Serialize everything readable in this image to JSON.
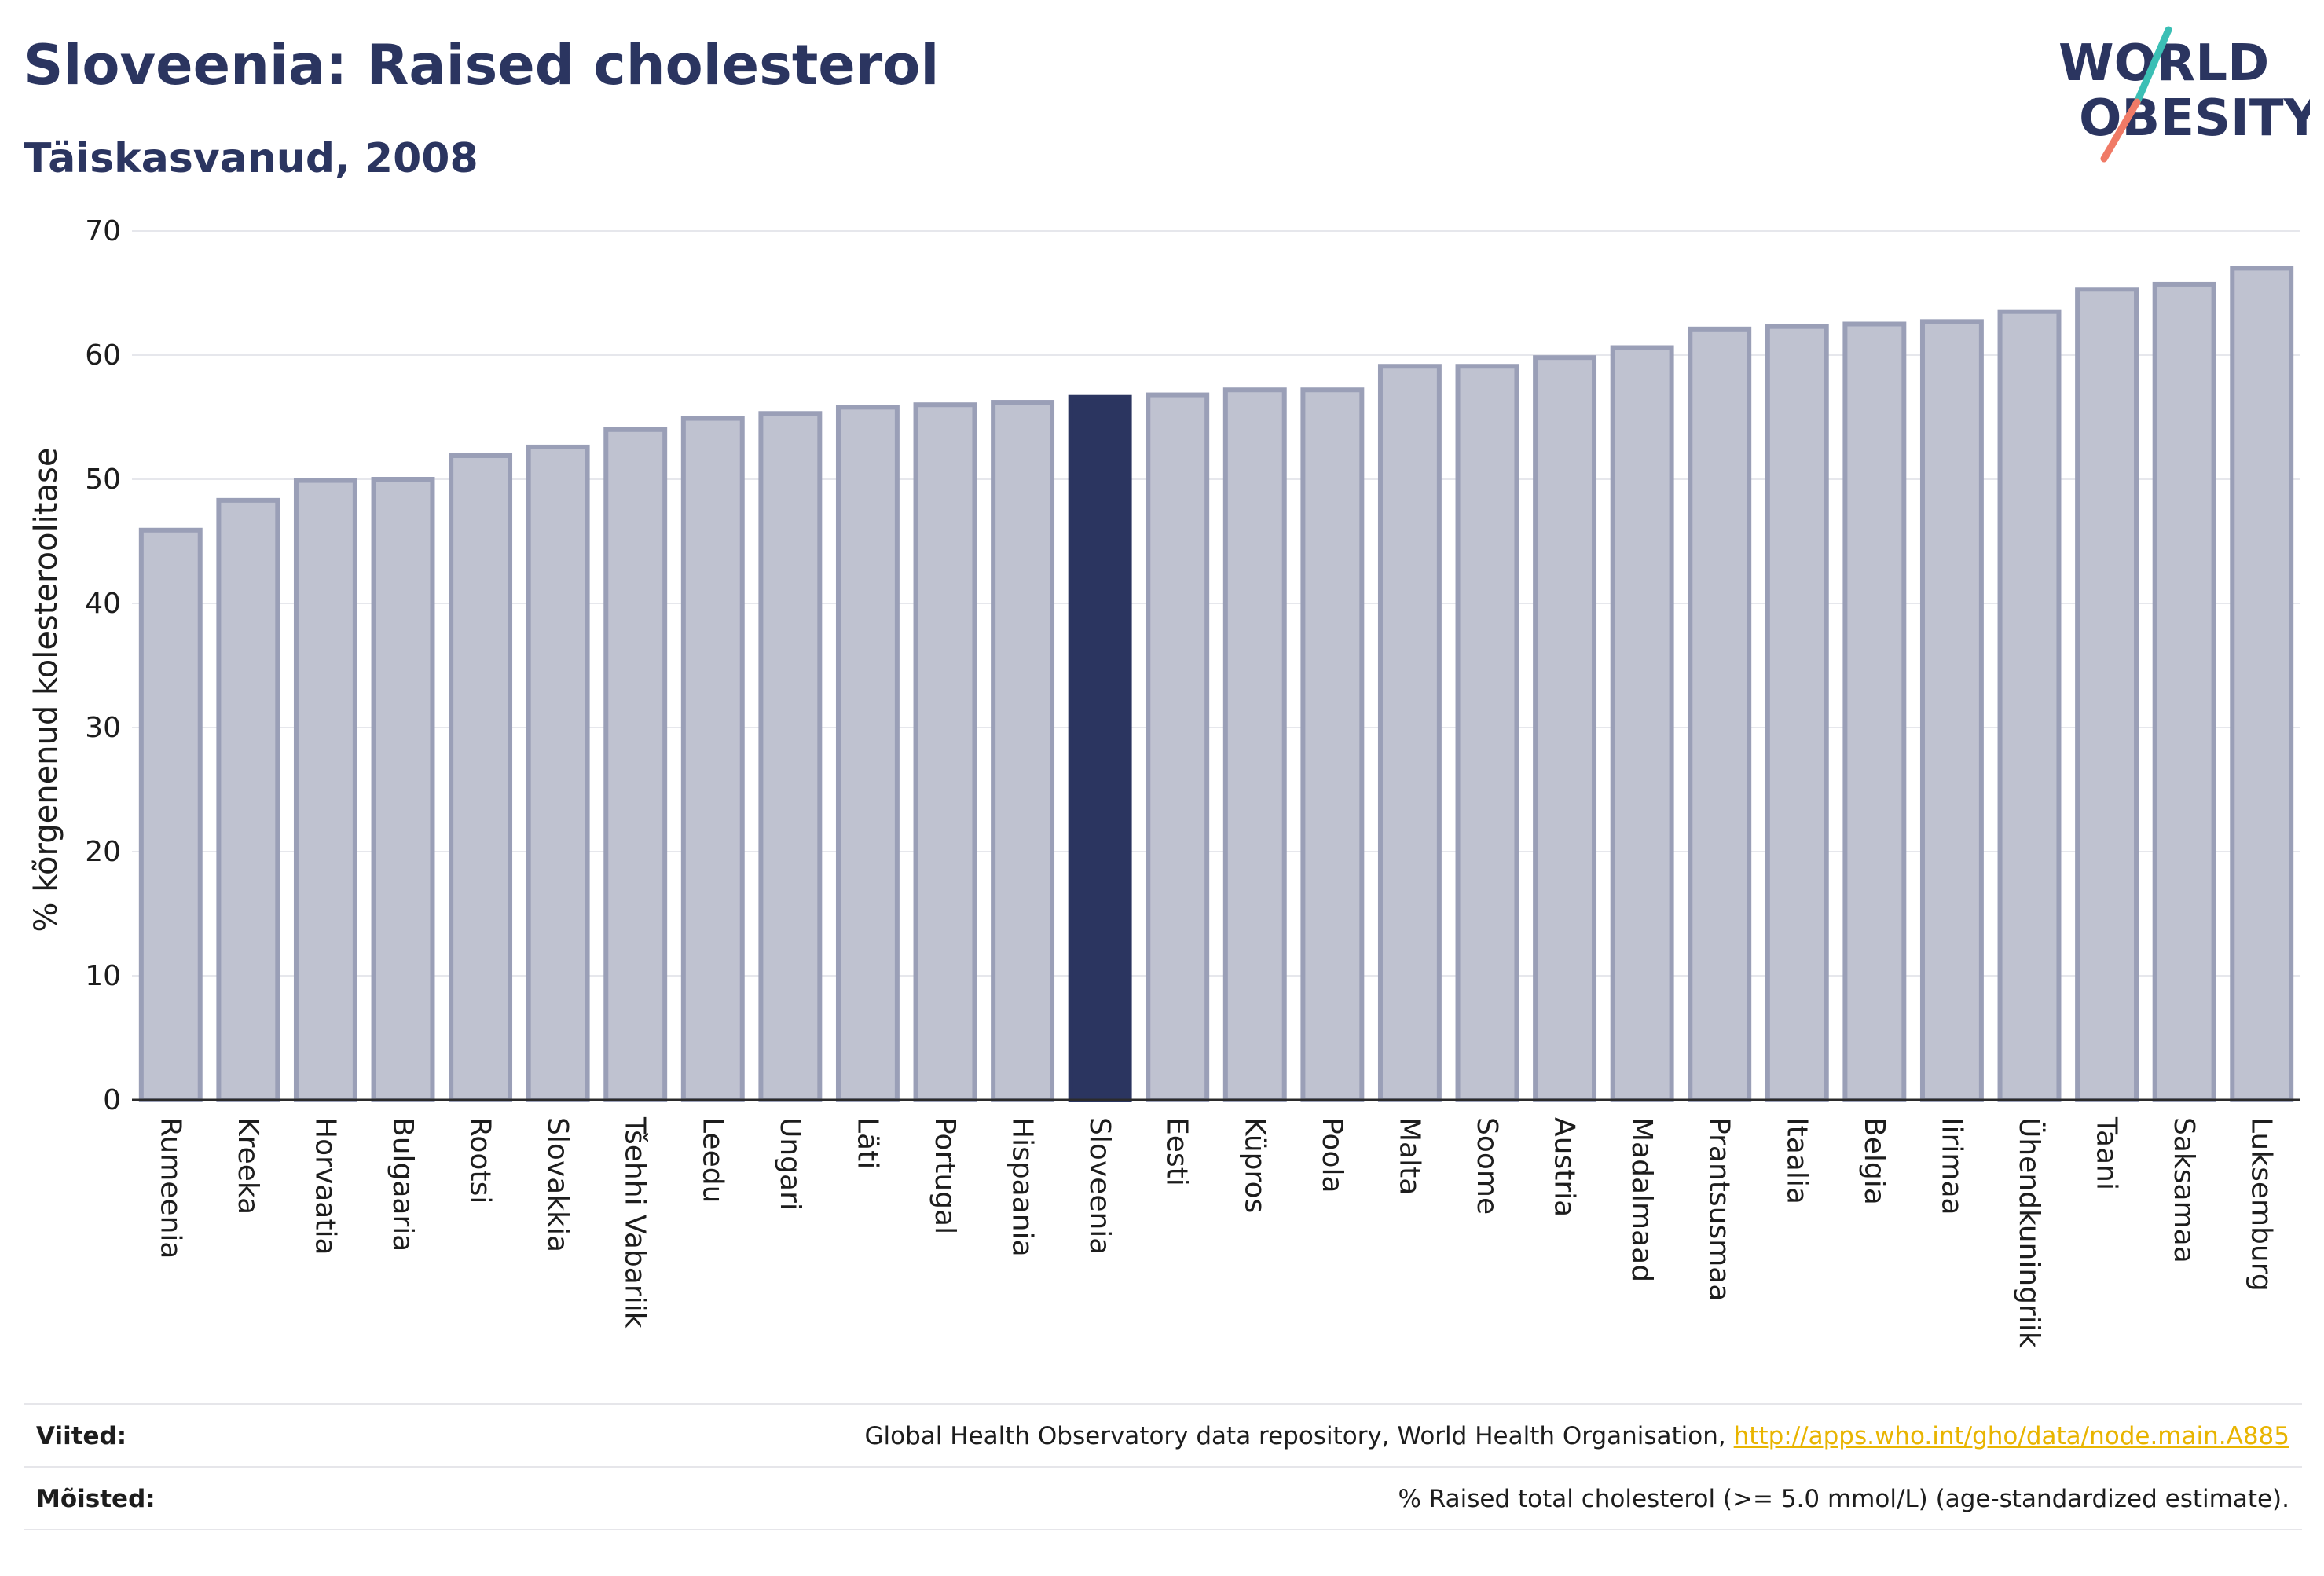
{
  "header": {
    "title": "Sloveenia: Raised cholesterol",
    "subtitle": "Täiskasvanud, 2008",
    "logo_line1": "WORLD",
    "logo_line2": "OBESITY"
  },
  "colors": {
    "title": "#2b3560",
    "bar": "#bfc2d0",
    "bar_border": "#9a9fb7",
    "highlight": "#2b3560",
    "grid": "#e6e7ec",
    "axis": "#2b2b2b",
    "link": "#e8b400",
    "logo_teal": "#3bbfb5",
    "logo_coral": "#f07a66"
  },
  "chart_data": {
    "type": "bar",
    "title": "Sloveenia: Raised cholesterol",
    "subtitle": "Täiskasvanud, 2008",
    "ylabel": "% kõrgenenud kolesteroolitase",
    "xlabel": "",
    "ylim": [
      0,
      70
    ],
    "yticks": [
      0,
      10,
      20,
      30,
      40,
      50,
      60,
      70
    ],
    "grid": true,
    "highlight": "Sloveenia",
    "categories": [
      "Rumeenia",
      "Kreeka",
      "Horvaatia",
      "Bulgaaria",
      "Rootsi",
      "Slovakkia",
      "Tšehhi Vabariik",
      "Leedu",
      "Ungari",
      "Läti",
      "Portugal",
      "Hispaania",
      "Sloveenia",
      "Eesti",
      "Küpros",
      "Poola",
      "Malta",
      "Soome",
      "Austria",
      "Madalmaad",
      "Prantsusmaa",
      "Itaalia",
      "Belgia",
      "Iirimaa",
      "Ühendkuningriik",
      "Taani",
      "Saksamaa",
      "Luksemburg"
    ],
    "values": [
      45.9,
      48.3,
      49.9,
      50.0,
      51.9,
      52.6,
      54.0,
      54.9,
      55.3,
      55.8,
      56.0,
      56.2,
      56.6,
      56.8,
      57.2,
      57.2,
      59.1,
      59.1,
      59.8,
      60.6,
      62.1,
      62.3,
      62.5,
      62.7,
      63.5,
      65.3,
      65.7,
      67.0
    ]
  },
  "footer": {
    "sources_label": "Viited:",
    "sources_text": "Global Health Observatory data repository, World Health Organisation,",
    "sources_link": "http://apps.who.int/gho/data/node.main.A885",
    "definitions_label": "Mõisted:",
    "definitions_text": "% Raised total cholesterol (>= 5.0 mmol/L) (age-standardized estimate)."
  }
}
